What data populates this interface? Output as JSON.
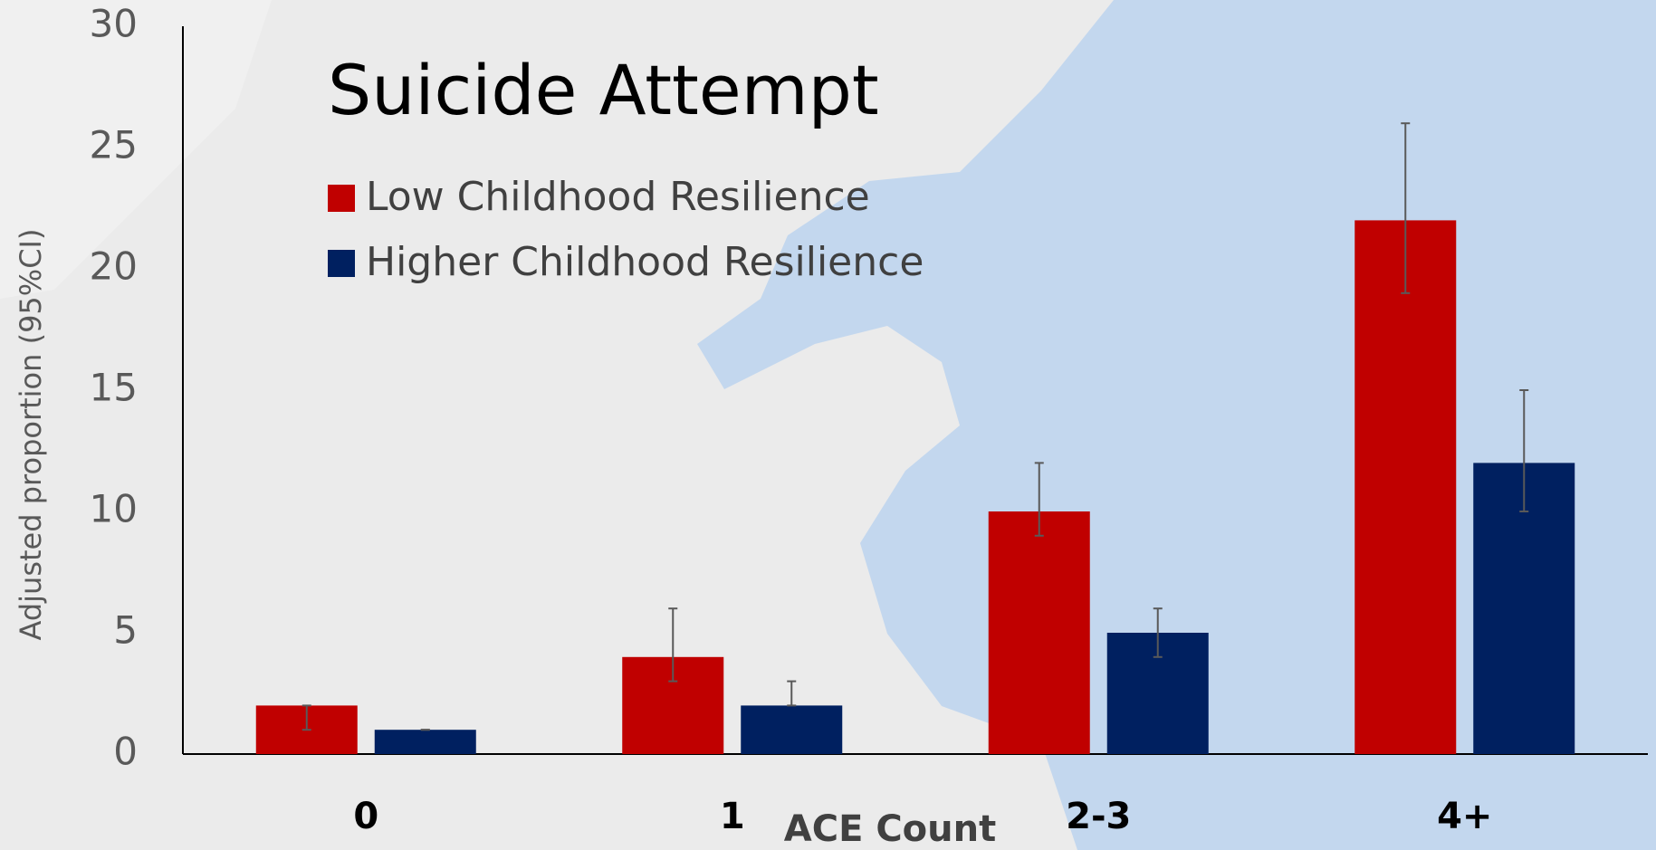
{
  "chart_data": {
    "type": "bar",
    "title": "Suicide Attempt",
    "x_label": "ACE Count",
    "y_label": "Adjusted proportion (95%CI)",
    "categories": [
      "0",
      "1",
      "2-3",
      "4+"
    ],
    "series": [
      {
        "name": "Low Childhood Resilience",
        "color": "#c00000",
        "values": [
          2,
          4,
          10,
          22
        ],
        "ci_low": [
          1,
          3,
          9,
          19
        ],
        "ci_high": [
          2,
          6,
          12,
          26
        ]
      },
      {
        "name": "Higher Childhood Resilience",
        "color": "#002060",
        "values": [
          1,
          2,
          5,
          12
        ],
        "ci_low": [
          1,
          2,
          4,
          10
        ],
        "ci_high": [
          1,
          3,
          6,
          15
        ]
      }
    ],
    "ylim": [
      0,
      30
    ],
    "yticks": [
      0,
      5,
      10,
      15,
      20,
      25,
      30
    ],
    "grid": false
  }
}
